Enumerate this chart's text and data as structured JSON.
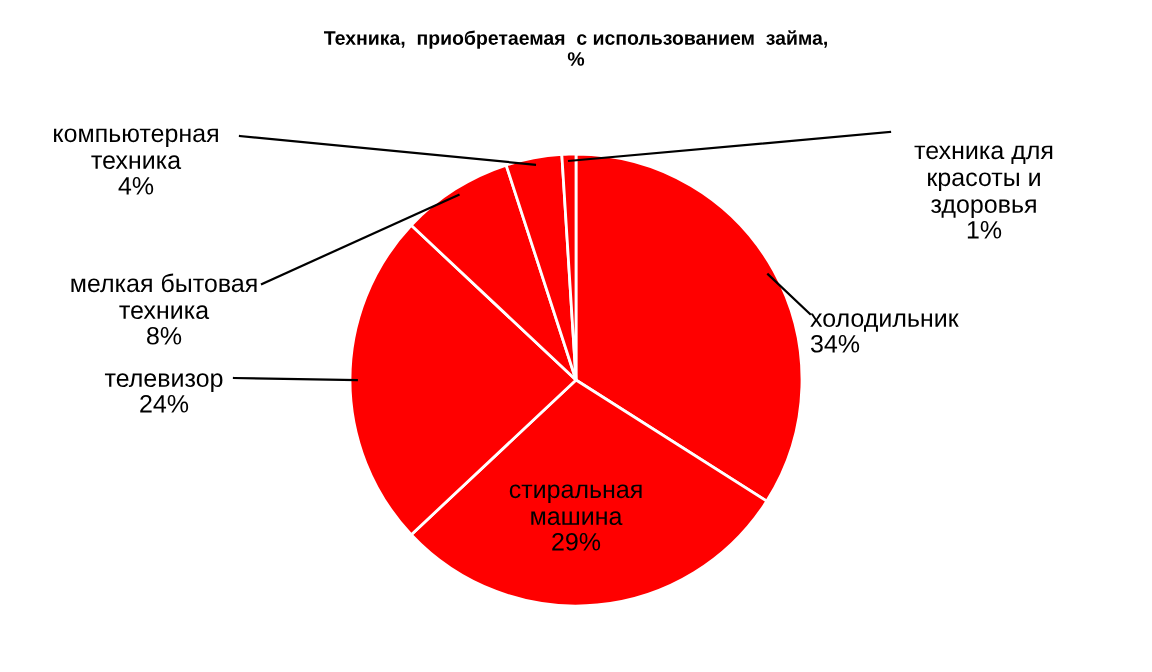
{
  "chart_data": {
    "type": "pie",
    "title": "Техника,  приобретаемая  с использованием  займа,\n%",
    "categories": [
      "холодильник",
      "стиральная машина",
      "телевизор",
      "мелкая бытовая техника",
      "компьютерная техника",
      "техника для красоты и здоровья"
    ],
    "values": [
      34,
      29,
      24,
      8,
      4,
      1
    ],
    "value_labels": [
      "34%",
      "29%",
      "24%",
      "8%",
      "4%",
      "1%"
    ],
    "colors": [
      "#ff0000",
      "#ff0000",
      "#ff0000",
      "#ff0000",
      "#ff0000",
      "#ff0000"
    ]
  }
}
